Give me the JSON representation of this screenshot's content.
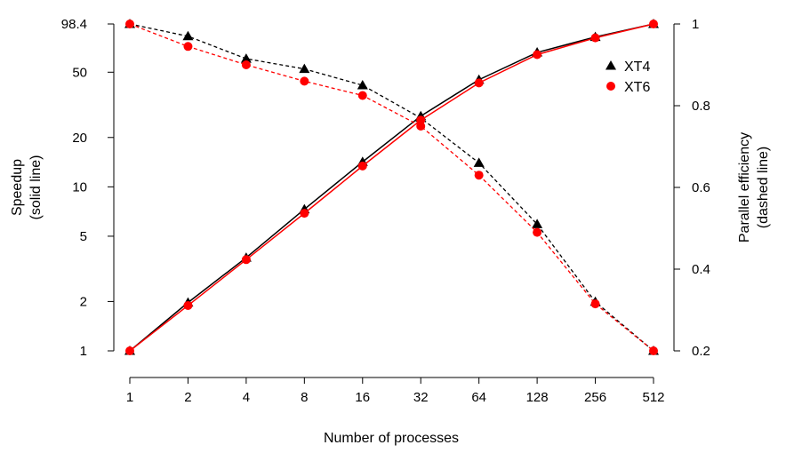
{
  "chart_data": {
    "type": "line",
    "x": [
      1,
      2,
      4,
      8,
      16,
      32,
      64,
      128,
      256,
      512
    ],
    "x_tick_labels": [
      "1",
      "2",
      "4",
      "8",
      "16",
      "32",
      "64",
      "128",
      "256",
      "512"
    ],
    "xlabel": "Number of processes",
    "y_left": {
      "label_line1": "Speedup",
      "label_line2": "(solid line)",
      "scale": "log",
      "ylim": [
        1,
        98.4
      ],
      "ticks": [
        1,
        2,
        5,
        10,
        20,
        50,
        98.4
      ],
      "tick_labels": [
        "1",
        "2",
        "5",
        "10",
        "20",
        "50",
        "98.4"
      ]
    },
    "y_right": {
      "label_line1": "Parallel efficiency",
      "label_line2": "(dashed line)",
      "scale": "linear",
      "ylim": [
        0.2,
        1
      ],
      "ticks": [
        0.2,
        0.4,
        0.6,
        0.8,
        1
      ],
      "tick_labels": [
        "0.2",
        "0.4",
        "0.6",
        "0.8",
        "1"
      ]
    },
    "series": [
      {
        "name": "XT4",
        "color": "#000000",
        "marker": "triangle",
        "speedup": [
          1,
          1.97,
          3.7,
          7.3,
          14.2,
          27.0,
          45.0,
          66.0,
          82.0,
          98.4
        ],
        "efficiency": [
          1.0,
          0.97,
          0.915,
          0.89,
          0.85,
          0.77,
          0.66,
          0.51,
          0.32,
          0.2
        ]
      },
      {
        "name": "XT6",
        "color": "#ff0000",
        "marker": "circle",
        "speedup": [
          1,
          1.89,
          3.6,
          6.9,
          13.4,
          25.5,
          43.0,
          64.0,
          81.0,
          98.4
        ],
        "efficiency": [
          1.0,
          0.945,
          0.9,
          0.86,
          0.825,
          0.75,
          0.63,
          0.49,
          0.315,
          0.2
        ]
      }
    ],
    "legend": {
      "position": "top-right",
      "entries": [
        "XT4",
        "XT6"
      ]
    }
  }
}
